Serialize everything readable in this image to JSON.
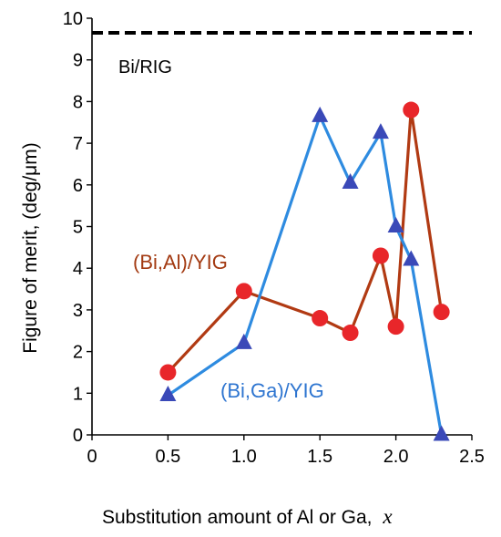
{
  "chart_data": {
    "type": "line",
    "xlabel": "Substitution amount of Al or Ga,",
    "xlabel_var": "x",
    "ylabel": "Figure of merit, (deg/μm)",
    "xlim": [
      0,
      2.5
    ],
    "ylim": [
      0,
      10
    ],
    "x_ticks": [
      "0",
      "0.5",
      "1.0",
      "1.5",
      "2.0",
      "2.5"
    ],
    "y_ticks": [
      "0",
      "1",
      "2",
      "3",
      "4",
      "5",
      "6",
      "7",
      "8",
      "9",
      "10"
    ],
    "grid": false,
    "series": [
      {
        "name": "(Bi,Al)/YIG",
        "line_color": "#b13a13",
        "marker_color": "#e8262a",
        "marker": "circle",
        "x": [
          0.5,
          1.0,
          1.5,
          1.7,
          1.9,
          2.0,
          2.1,
          2.3
        ],
        "y": [
          1.5,
          3.45,
          2.8,
          2.45,
          4.3,
          2.6,
          7.8,
          2.95
        ]
      },
      {
        "name": "(Bi,Ga)/YIG",
        "line_color": "#2e8be0",
        "marker_color": "#3a49b8",
        "marker": "triangle",
        "x": [
          0.5,
          1.0,
          1.5,
          1.7,
          1.9,
          2.0,
          2.1,
          2.3
        ],
        "y": [
          0.95,
          2.2,
          7.65,
          6.05,
          7.25,
          5.0,
          4.2,
          0.0
        ]
      }
    ],
    "reference_lines": [
      {
        "name": "Bi/RIG",
        "y": 9.65,
        "style": "dashed",
        "color": "#000000"
      }
    ],
    "annotations": [
      {
        "text": "Bi/RIG",
        "color": "#000000"
      },
      {
        "text": "(Bi,Al)/YIG",
        "color": "#a33a12"
      },
      {
        "text": "(Bi,Ga)/YIG",
        "color": "#2e75d0"
      }
    ]
  }
}
